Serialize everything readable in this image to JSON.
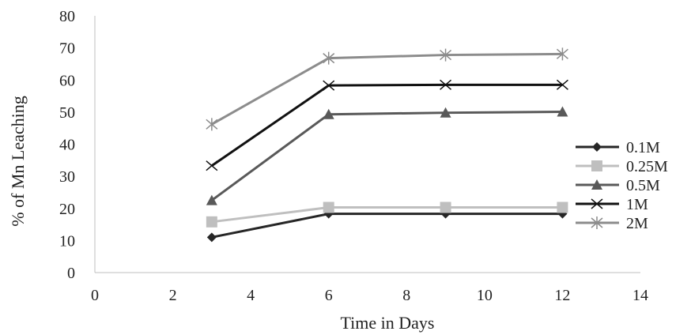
{
  "chart_data": {
    "type": "line",
    "title": "",
    "xlabel": "Time in Days",
    "ylabel": "% of Mn Leaching",
    "xlim": [
      0,
      14
    ],
    "ylim": [
      0,
      80
    ],
    "xticks": [
      0,
      2,
      4,
      6,
      8,
      10,
      12,
      14
    ],
    "yticks": [
      0,
      10,
      20,
      30,
      40,
      50,
      60,
      70,
      80
    ],
    "grid": false,
    "legend_position": "right",
    "series": [
      {
        "name": "0.1M",
        "marker": "diamond",
        "color": "#262626",
        "x": [
          3,
          6,
          9,
          12
        ],
        "y": [
          11,
          18.3,
          18.3,
          18.3
        ]
      },
      {
        "name": "0.25M",
        "marker": "square",
        "color": "#bfbfbf",
        "x": [
          3,
          6,
          9,
          12
        ],
        "y": [
          15.8,
          20.3,
          20.3,
          20.3
        ]
      },
      {
        "name": "0.5M",
        "marker": "triangle",
        "color": "#595959",
        "x": [
          3,
          6,
          9,
          12
        ],
        "y": [
          22.5,
          49.3,
          49.8,
          50.1
        ]
      },
      {
        "name": "1M",
        "marker": "x",
        "color": "#111111",
        "x": [
          3,
          6,
          9,
          12
        ],
        "y": [
          33.3,
          58.3,
          58.5,
          58.5
        ]
      },
      {
        "name": "2M",
        "marker": "star",
        "color": "#8c8c8c",
        "x": [
          3,
          6,
          9,
          12
        ],
        "y": [
          46.2,
          66.8,
          67.8,
          68.1
        ]
      }
    ]
  }
}
